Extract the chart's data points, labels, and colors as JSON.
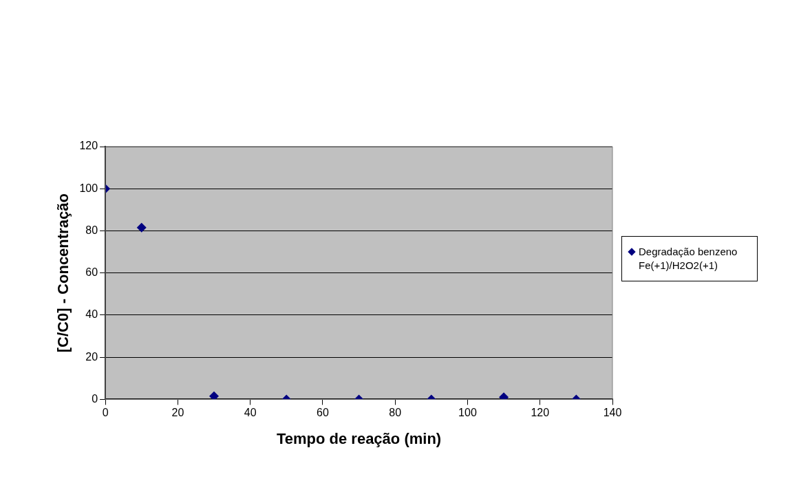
{
  "chart_data": {
    "type": "scatter",
    "xlabel": "Tempo de reação (min)",
    "ylabel": "[C/C0] - Concentração",
    "x": [
      0,
      10,
      30,
      50,
      70,
      90,
      110,
      130
    ],
    "series": [
      {
        "name": "Degradação benzeno Fe(+1)/H2O2(+1)",
        "color": "#000080",
        "values": [
          100,
          81.5,
          1.5,
          0,
          0,
          0,
          1,
          0
        ]
      }
    ],
    "xlim": [
      0,
      140
    ],
    "xticks": [
      0,
      20,
      40,
      60,
      80,
      100,
      120,
      140
    ],
    "ylim": [
      0,
      120
    ],
    "yticks": [
      0,
      20,
      40,
      60,
      80,
      100,
      120
    ],
    "grid": "y",
    "legend": "right",
    "marker": "diamond"
  }
}
